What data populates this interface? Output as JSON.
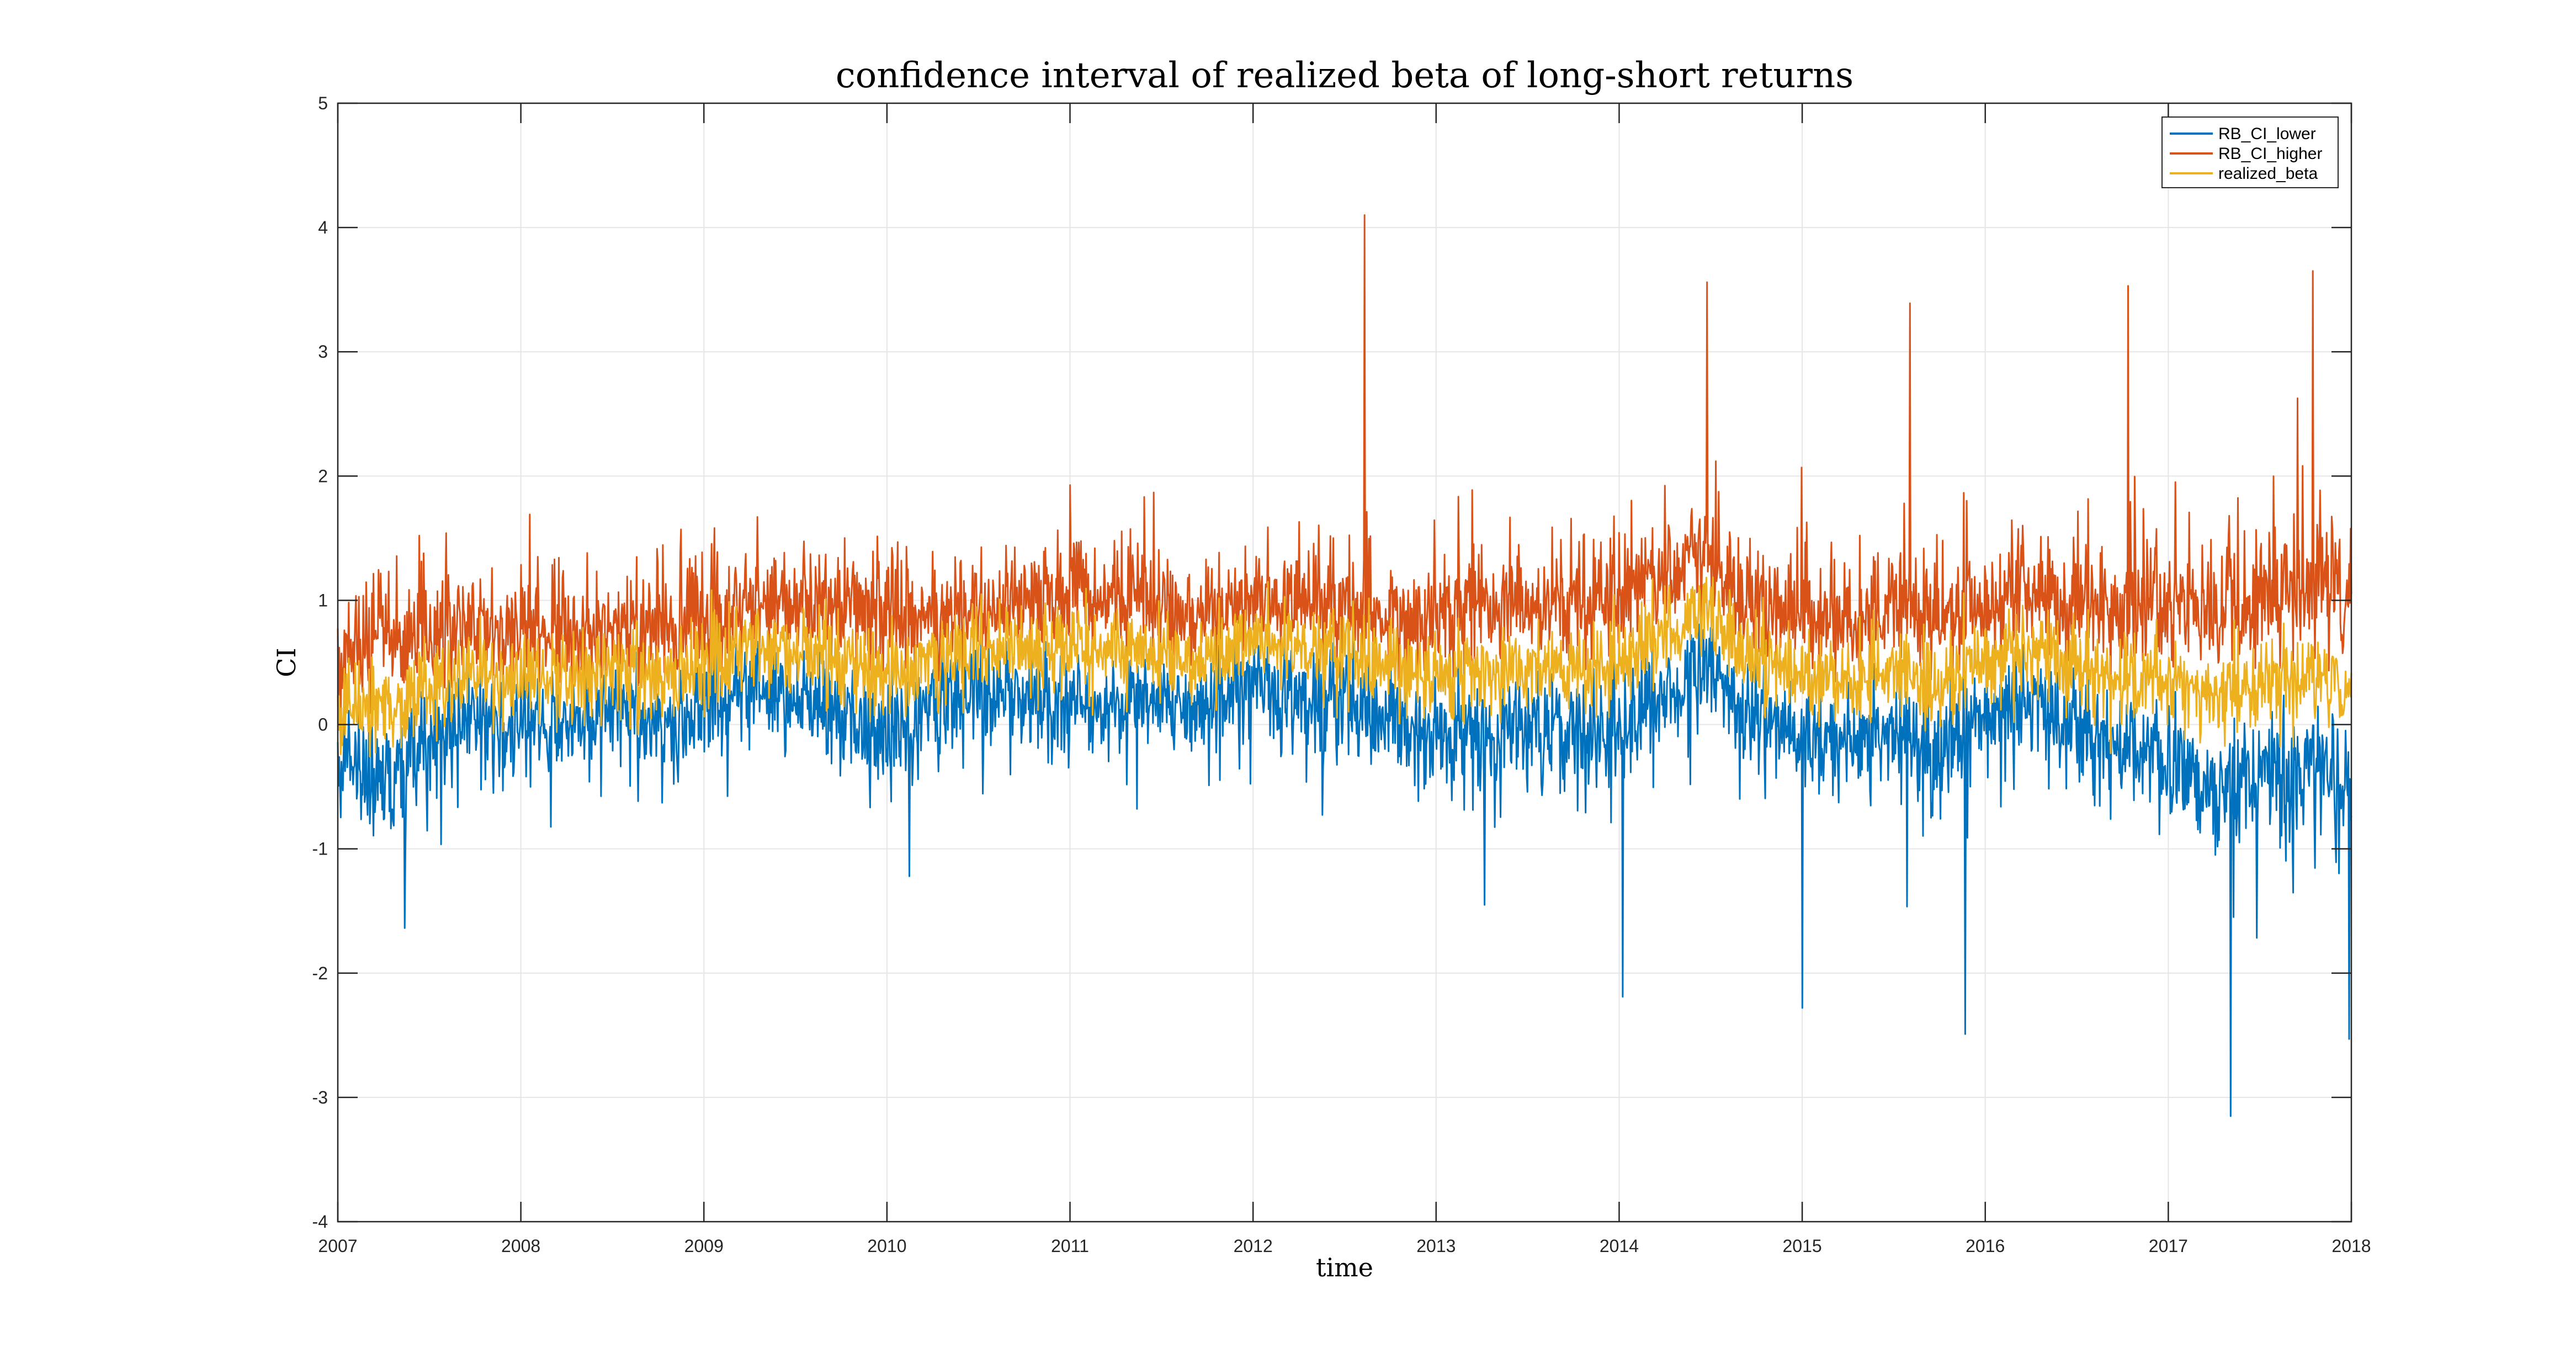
{
  "chart_data": {
    "type": "line",
    "title": "confidence interval of realized beta of long-short returns",
    "xlabel": "time",
    "ylabel": "CI",
    "xlim": [
      2007,
      2018
    ],
    "ylim": [
      -4,
      5
    ],
    "xticks": [
      "2007",
      "2008",
      "2009",
      "2010",
      "2011",
      "2012",
      "2013",
      "2014",
      "2015",
      "2016",
      "2017",
      "2018"
    ],
    "yticks": [
      "-4",
      "-3",
      "-2",
      "-1",
      "0",
      "1",
      "2",
      "3",
      "4",
      "5"
    ],
    "grid": true,
    "legend_position": "top-right",
    "colors": {
      "RB_CI_lower": "#0072BD",
      "RB_CI_higher": "#D95319",
      "realized_beta": "#EDB120"
    },
    "series": [
      {
        "name": "RB_CI_lower",
        "x": [
          2007,
          2007.25,
          2007.5,
          2007.75,
          2008,
          2008.25,
          2008.5,
          2008.75,
          2009,
          2009.25,
          2009.5,
          2009.75,
          2010,
          2010.25,
          2010.5,
          2010.75,
          2011,
          2011.25,
          2011.5,
          2011.75,
          2012,
          2012.25,
          2012.5,
          2012.75,
          2013,
          2013.25,
          2013.5,
          2013.75,
          2014,
          2014.25,
          2014.5,
          2014.75,
          2015,
          2015.25,
          2015.5,
          2015.75,
          2016,
          2016.25,
          2016.5,
          2016.75,
          2017,
          2017.25,
          2017.5,
          2017.75,
          2018
        ],
        "y": [
          -0.3,
          -0.5,
          -0.2,
          0.0,
          -0.1,
          0.0,
          0.1,
          -0.1,
          0.1,
          0.3,
          0.2,
          0.0,
          -0.2,
          0.1,
          0.3,
          0.2,
          0.1,
          0.1,
          0.2,
          0.1,
          0.3,
          0.2,
          0.2,
          0.0,
          -0.1,
          -0.2,
          -0.1,
          -0.2,
          -0.1,
          0.2,
          0.4,
          0.0,
          -0.2,
          -0.2,
          -0.1,
          -0.3,
          0.0,
          0.1,
          -0.1,
          -0.2,
          -0.4,
          -0.6,
          -0.5,
          -0.5,
          -0.5
        ]
      },
      {
        "name": "RB_CI_higher",
        "x": [
          2007,
          2007.25,
          2007.5,
          2007.75,
          2008,
          2008.25,
          2008.5,
          2008.75,
          2009,
          2009.25,
          2009.5,
          2009.75,
          2010,
          2010.25,
          2010.5,
          2010.75,
          2011,
          2011.25,
          2011.5,
          2011.75,
          2012,
          2012.25,
          2012.5,
          2012.75,
          2013,
          2013.25,
          2013.5,
          2013.75,
          2014,
          2014.25,
          2014.5,
          2014.75,
          2015,
          2015.25,
          2015.5,
          2015.75,
          2016,
          2016.25,
          2016.5,
          2016.75,
          2017,
          2017.25,
          2017.5,
          2017.75,
          2018
        ],
        "y": [
          0.6,
          0.8,
          0.7,
          0.8,
          0.8,
          0.8,
          0.8,
          0.8,
          0.9,
          1.0,
          1.1,
          1.0,
          0.9,
          0.9,
          1.0,
          1.0,
          1.1,
          1.1,
          1.0,
          0.9,
          1.0,
          1.1,
          1.0,
          0.9,
          0.9,
          1.0,
          1.0,
          1.0,
          1.1,
          1.3,
          1.4,
          1.0,
          0.9,
          0.9,
          1.0,
          0.9,
          1.0,
          1.1,
          1.0,
          1.0,
          1.0,
          1.0,
          1.1,
          1.2,
          1.1
        ]
      },
      {
        "name": "realized_beta",
        "x": [
          2007,
          2007.25,
          2007.5,
          2007.75,
          2008,
          2008.25,
          2008.5,
          2008.75,
          2009,
          2009.25,
          2009.5,
          2009.75,
          2010,
          2010.25,
          2010.5,
          2010.75,
          2011,
          2011.25,
          2011.5,
          2011.75,
          2012,
          2012.25,
          2012.5,
          2012.75,
          2013,
          2013.25,
          2013.5,
          2013.75,
          2014,
          2014.25,
          2014.5,
          2014.75,
          2015,
          2015.25,
          2015.5,
          2015.75,
          2016,
          2016.25,
          2016.5,
          2016.75,
          2017,
          2017.25,
          2017.5,
          2017.75,
          2018
        ],
        "y": [
          0.15,
          0.15,
          0.25,
          0.4,
          0.35,
          0.4,
          0.45,
          0.35,
          0.5,
          0.65,
          0.65,
          0.5,
          0.35,
          0.5,
          0.65,
          0.6,
          0.6,
          0.6,
          0.6,
          0.5,
          0.65,
          0.65,
          0.6,
          0.45,
          0.4,
          0.4,
          0.45,
          0.4,
          0.5,
          0.75,
          0.9,
          0.5,
          0.35,
          0.35,
          0.45,
          0.3,
          0.5,
          0.6,
          0.45,
          0.4,
          0.3,
          0.2,
          0.3,
          0.35,
          0.3
        ]
      }
    ],
    "annotations": [
      {
        "series": "RB_CI_higher",
        "x": 2012.61,
        "y": 4.1
      },
      {
        "series": "RB_CI_higher",
        "x": 2017.79,
        "y": 3.65
      },
      {
        "series": "RB_CI_higher",
        "x": 2016.78,
        "y": 3.53
      },
      {
        "series": "RB_CI_higher",
        "x": 2014.48,
        "y": 3.56
      },
      {
        "series": "RB_CI_higher",
        "x": 2015.59,
        "y": 3.39
      },
      {
        "series": "RB_CI_lower",
        "x": 2017.34,
        "y": -3.15
      },
      {
        "series": "RB_CI_lower",
        "x": 2017.99,
        "y": -2.53
      },
      {
        "series": "RB_CI_lower",
        "x": 2015.89,
        "y": -2.49
      },
      {
        "series": "RB_CI_lower",
        "x": 2014.02,
        "y": -2.19
      },
      {
        "series": "RB_CI_lower",
        "x": 2015.0,
        "y": -2.28
      }
    ]
  }
}
